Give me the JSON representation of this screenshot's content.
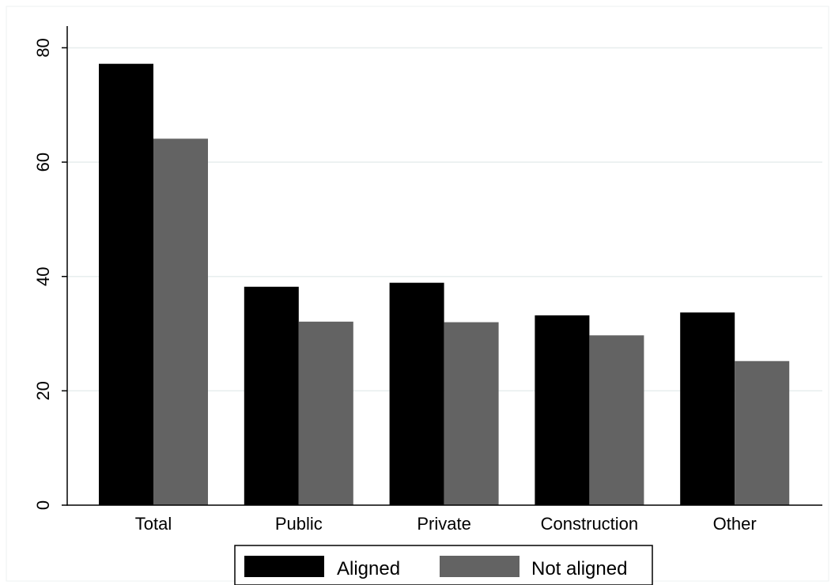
{
  "chart_data": {
    "type": "bar",
    "categories": [
      "Total",
      "Public",
      "Private",
      "Construction",
      "Other"
    ],
    "series": [
      {
        "name": "Aligned",
        "color": "#000000",
        "values": [
          77.2,
          38.2,
          38.9,
          33.2,
          33.7
        ]
      },
      {
        "name": "Not aligned",
        "color": "#636363",
        "values": [
          64.1,
          32.1,
          32.0,
          29.7,
          25.2
        ]
      }
    ],
    "ylim": [
      0,
      84
    ],
    "yticks": [
      0,
      20,
      40,
      60,
      80
    ],
    "ytick_labels": [
      "0",
      "20",
      "40",
      "60",
      "80"
    ],
    "grid": true,
    "legend_position": "bottom-center",
    "title": "",
    "xlabel": "",
    "ylabel": ""
  }
}
